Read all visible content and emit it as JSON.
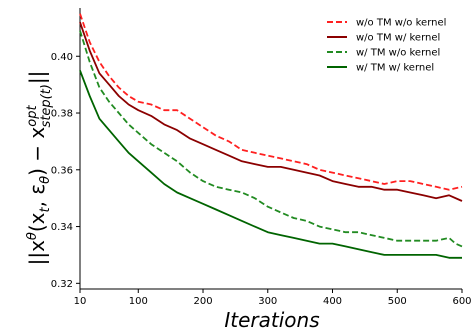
{
  "chart_data": {
    "type": "line",
    "xlabel": "Iterations",
    "ylabel_main": "||x",
    "ylabel_sup1": "θ",
    "ylabel_args": "(x",
    "ylabel_sub1": "t",
    "ylabel_comma": ", ε",
    "ylabel_sub2": "θ",
    "ylabel_mid": ") − x",
    "ylabel_sup2": "opt",
    "ylabel_sub3": "step(t)",
    "ylabel_end": "||",
    "xlim": [
      10,
      600
    ],
    "ylim": [
      0.318,
      0.417
    ],
    "xticks": [
      10,
      100,
      200,
      300,
      400,
      500,
      600
    ],
    "yticks": [
      0.32,
      0.34,
      0.36,
      0.38,
      0.4
    ],
    "ytick_labels": [
      "0.32",
      "0.34",
      "0.36",
      "0.38",
      "0.40"
    ],
    "grid": false,
    "legend_position": "top-right",
    "series": [
      {
        "name": "w/o TM w/o kernel",
        "color": "#ff2020",
        "dash": true,
        "points": [
          [
            10,
            0.415
          ],
          [
            25,
            0.405
          ],
          [
            40,
            0.398
          ],
          [
            55,
            0.393
          ],
          [
            70,
            0.389
          ],
          [
            85,
            0.386
          ],
          [
            100,
            0.384
          ],
          [
            120,
            0.383
          ],
          [
            140,
            0.381
          ],
          [
            160,
            0.381
          ],
          [
            180,
            0.378
          ],
          [
            200,
            0.375
          ],
          [
            220,
            0.372
          ],
          [
            240,
            0.37
          ],
          [
            260,
            0.367
          ],
          [
            280,
            0.366
          ],
          [
            300,
            0.365
          ],
          [
            320,
            0.364
          ],
          [
            340,
            0.363
          ],
          [
            360,
            0.362
          ],
          [
            380,
            0.36
          ],
          [
            400,
            0.359
          ],
          [
            420,
            0.358
          ],
          [
            440,
            0.357
          ],
          [
            460,
            0.356
          ],
          [
            480,
            0.355
          ],
          [
            500,
            0.356
          ],
          [
            510,
            0.356
          ],
          [
            520,
            0.356
          ],
          [
            540,
            0.355
          ],
          [
            560,
            0.354
          ],
          [
            580,
            0.353
          ],
          [
            600,
            0.354
          ]
        ]
      },
      {
        "name": "w/o TM w/ kernel",
        "color": "#8b0000",
        "dash": false,
        "points": [
          [
            10,
            0.412
          ],
          [
            25,
            0.402
          ],
          [
            40,
            0.394
          ],
          [
            55,
            0.39
          ],
          [
            70,
            0.386
          ],
          [
            85,
            0.383
          ],
          [
            100,
            0.381
          ],
          [
            120,
            0.379
          ],
          [
            140,
            0.376
          ],
          [
            160,
            0.374
          ],
          [
            180,
            0.371
          ],
          [
            200,
            0.369
          ],
          [
            220,
            0.367
          ],
          [
            240,
            0.365
          ],
          [
            260,
            0.363
          ],
          [
            280,
            0.362
          ],
          [
            300,
            0.361
          ],
          [
            320,
            0.361
          ],
          [
            340,
            0.36
          ],
          [
            360,
            0.359
          ],
          [
            380,
            0.358
          ],
          [
            400,
            0.356
          ],
          [
            420,
            0.355
          ],
          [
            440,
            0.354
          ],
          [
            460,
            0.354
          ],
          [
            480,
            0.353
          ],
          [
            500,
            0.353
          ],
          [
            520,
            0.352
          ],
          [
            540,
            0.351
          ],
          [
            560,
            0.35
          ],
          [
            580,
            0.351
          ],
          [
            600,
            0.349
          ]
        ]
      },
      {
        "name": "w/ TM w/o kernel",
        "color": "#228b22",
        "dash": true,
        "points": [
          [
            10,
            0.409
          ],
          [
            25,
            0.398
          ],
          [
            40,
            0.389
          ],
          [
            55,
            0.384
          ],
          [
            70,
            0.38
          ],
          [
            85,
            0.376
          ],
          [
            100,
            0.373
          ],
          [
            120,
            0.369
          ],
          [
            140,
            0.366
          ],
          [
            160,
            0.363
          ],
          [
            180,
            0.359
          ],
          [
            200,
            0.356
          ],
          [
            220,
            0.354
          ],
          [
            240,
            0.353
          ],
          [
            260,
            0.352
          ],
          [
            280,
            0.35
          ],
          [
            300,
            0.347
          ],
          [
            320,
            0.345
          ],
          [
            340,
            0.343
          ],
          [
            360,
            0.342
          ],
          [
            380,
            0.34
          ],
          [
            400,
            0.339
          ],
          [
            420,
            0.338
          ],
          [
            440,
            0.338
          ],
          [
            460,
            0.337
          ],
          [
            480,
            0.336
          ],
          [
            500,
            0.335
          ],
          [
            520,
            0.335
          ],
          [
            540,
            0.335
          ],
          [
            560,
            0.335
          ],
          [
            580,
            0.336
          ],
          [
            590,
            0.334
          ],
          [
            600,
            0.333
          ]
        ]
      },
      {
        "name": "w/ TM w/ kernel",
        "color": "#006400",
        "dash": false,
        "points": [
          [
            10,
            0.395
          ],
          [
            25,
            0.386
          ],
          [
            40,
            0.378
          ],
          [
            55,
            0.374
          ],
          [
            70,
            0.37
          ],
          [
            85,
            0.366
          ],
          [
            100,
            0.363
          ],
          [
            120,
            0.359
          ],
          [
            140,
            0.355
          ],
          [
            160,
            0.352
          ],
          [
            180,
            0.35
          ],
          [
            200,
            0.348
          ],
          [
            220,
            0.346
          ],
          [
            240,
            0.344
          ],
          [
            260,
            0.342
          ],
          [
            280,
            0.34
          ],
          [
            300,
            0.338
          ],
          [
            320,
            0.337
          ],
          [
            340,
            0.336
          ],
          [
            360,
            0.335
          ],
          [
            380,
            0.334
          ],
          [
            400,
            0.334
          ],
          [
            420,
            0.333
          ],
          [
            440,
            0.332
          ],
          [
            460,
            0.331
          ],
          [
            480,
            0.33
          ],
          [
            500,
            0.33
          ],
          [
            520,
            0.33
          ],
          [
            540,
            0.33
          ],
          [
            560,
            0.33
          ],
          [
            580,
            0.329
          ],
          [
            600,
            0.329
          ]
        ]
      }
    ]
  }
}
